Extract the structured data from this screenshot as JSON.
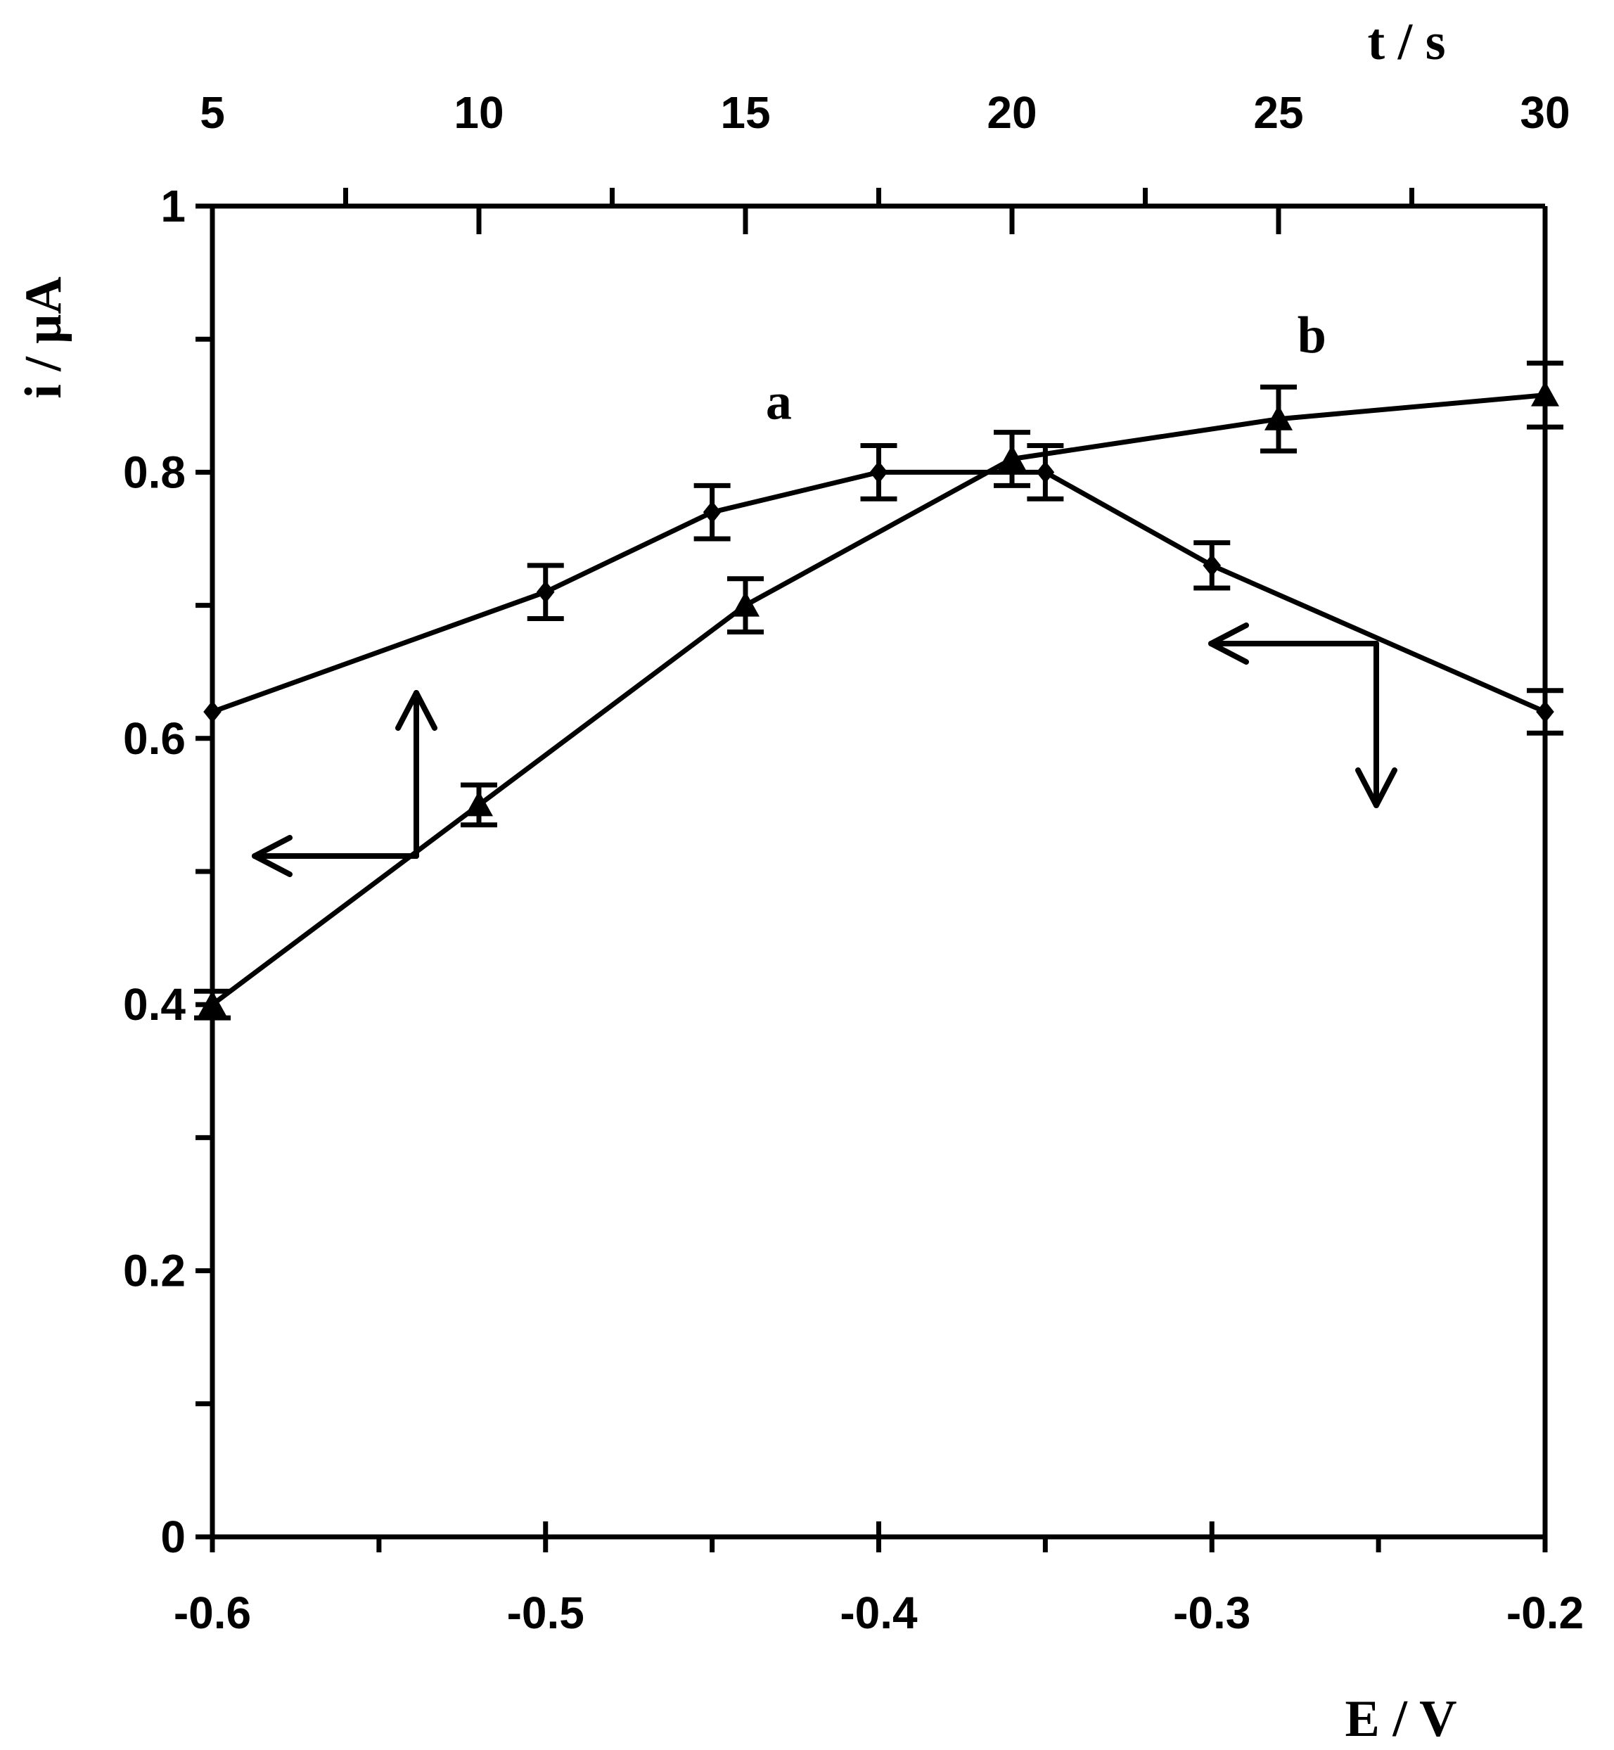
{
  "chart_data": {
    "type": "line",
    "x_bottom": {
      "label": "E / V",
      "range": [
        -0.6,
        -0.2
      ],
      "ticks": [
        -0.6,
        -0.5,
        -0.4,
        -0.3,
        -0.2
      ],
      "tick_labels": [
        "-0.6",
        "-0.5",
        "-0.4",
        "-0.3",
        "-0.2"
      ]
    },
    "x_top": {
      "label": "t / s",
      "range": [
        5,
        30
      ],
      "ticks": [
        5,
        10,
        15,
        20,
        25,
        30
      ],
      "tick_labels": [
        "5",
        "10",
        "15",
        "20",
        "25",
        "30"
      ]
    },
    "y": {
      "label": "i / μA",
      "range": [
        0,
        1
      ],
      "ticks": [
        0,
        0.2,
        0.4,
        0.6,
        0.8,
        1
      ],
      "tick_labels": [
        "0",
        "0.2",
        "0.4",
        "0.6",
        "0.8",
        "1"
      ]
    },
    "grid": false,
    "series": [
      {
        "name": "a",
        "axis": "bottom",
        "marker": "diamond",
        "x": [
          -0.6,
          -0.5,
          -0.45,
          -0.4,
          -0.35,
          -0.3,
          -0.2
        ],
        "y": [
          0.62,
          0.71,
          0.77,
          0.8,
          0.8,
          0.73,
          0.62
        ],
        "err": [
          0.0,
          0.02,
          0.02,
          0.02,
          0.02,
          0.017,
          0.016
        ]
      },
      {
        "name": "b",
        "axis": "top",
        "marker": "triangle",
        "x": [
          5,
          10,
          15,
          20,
          25,
          30
        ],
        "y": [
          0.4,
          0.55,
          0.7,
          0.81,
          0.84,
          0.858
        ],
        "err": [
          0.01,
          0.015,
          0.02,
          0.02,
          0.024,
          0.024
        ]
      }
    ],
    "annotations": [
      {
        "text": "a",
        "x": -0.43,
        "y": 0.84,
        "axis": "bottom"
      },
      {
        "text": "b",
        "x": -0.27,
        "y": 0.89,
        "axis": "bottom"
      }
    ]
  }
}
